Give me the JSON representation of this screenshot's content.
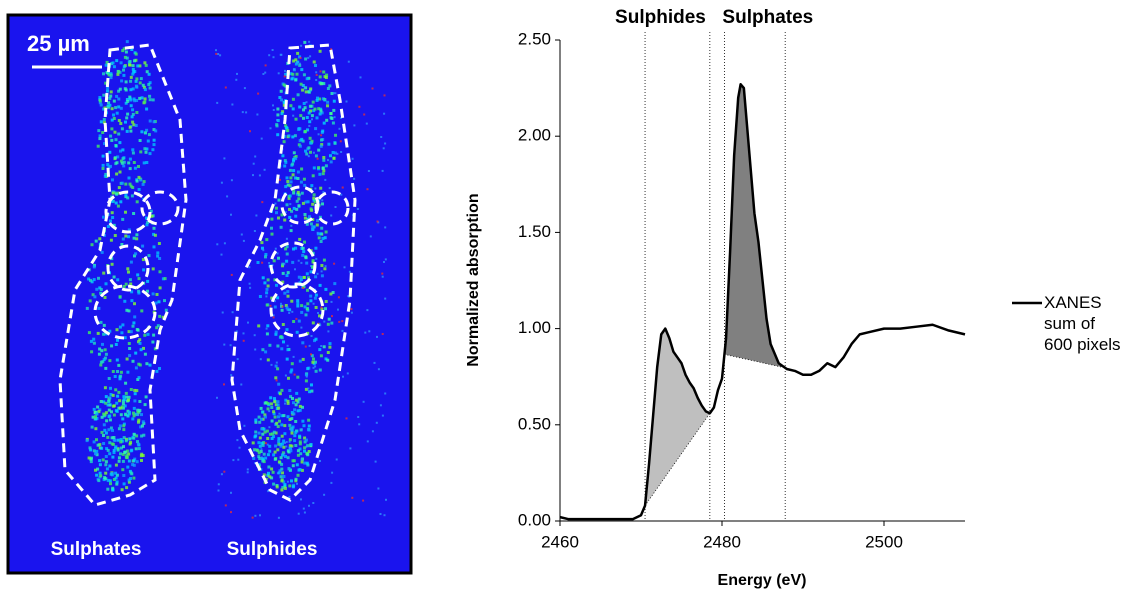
{
  "image_panel": {
    "scale_bar": "25 µm",
    "labels": [
      "Sulphates",
      "Sulphides"
    ]
  },
  "chart_data": {
    "type": "line",
    "x_label": "Energy (eV)",
    "y_label": "Normalized absorption",
    "x": [
      2460,
      2461,
      2462,
      2464,
      2466,
      2468,
      2469,
      2470,
      2470.5,
      2471,
      2471.5,
      2472,
      2472.5,
      2473,
      2473.5,
      2474,
      2474.5,
      2475,
      2475.5,
      2476,
      2476.5,
      2477,
      2477.5,
      2478,
      2478.5,
      2479,
      2479.5,
      2480,
      2480.5,
      2481,
      2481.5,
      2482,
      2482.3,
      2482.7,
      2483,
      2483.5,
      2484,
      2484.5,
      2485,
      2485.5,
      2486,
      2486.5,
      2487,
      2488,
      2489,
      2490,
      2491,
      2492,
      2493,
      2494,
      2495,
      2496,
      2497,
      2498,
      2500,
      2502,
      2504,
      2506,
      2508,
      2510
    ],
    "series": [
      {
        "name": "XANES sum of 600 pixels",
        "color": "#000000",
        "values": [
          0.02,
          0.01,
          0.01,
          0.01,
          0.01,
          0.01,
          0.01,
          0.03,
          0.08,
          0.3,
          0.55,
          0.8,
          0.97,
          1.0,
          0.95,
          0.88,
          0.85,
          0.82,
          0.76,
          0.72,
          0.69,
          0.64,
          0.6,
          0.57,
          0.56,
          0.59,
          0.68,
          0.74,
          0.95,
          1.4,
          1.9,
          2.2,
          2.27,
          2.25,
          2.1,
          1.85,
          1.6,
          1.45,
          1.25,
          1.05,
          0.92,
          0.87,
          0.82,
          0.79,
          0.78,
          0.76,
          0.76,
          0.78,
          0.82,
          0.8,
          0.85,
          0.92,
          0.97,
          0.98,
          1.0,
          1.0,
          1.01,
          1.02,
          0.99,
          0.97
        ]
      }
    ],
    "regions": [
      {
        "label": "Sulphides",
        "start": 2470.5,
        "end": 2478.5,
        "color": "#bfbfbf"
      },
      {
        "label": "Sulphates",
        "start": 2480.3,
        "end": 2487.8,
        "color": "#808080"
      }
    ],
    "xlim": [
      2460,
      2510
    ],
    "ylim": [
      0,
      2.5
    ],
    "xticks": [
      2460,
      2480,
      2500
    ],
    "yticks": [
      {
        "value": 0,
        "label": "0.00"
      },
      {
        "value": 0.5,
        "label": "0.50"
      },
      {
        "value": 1,
        "label": "1.00"
      },
      {
        "value": 1.5,
        "label": "1.50"
      },
      {
        "value": 2,
        "label": "2.00"
      },
      {
        "value": 2.5,
        "label": "2.50"
      }
    ],
    "legend": "right"
  }
}
